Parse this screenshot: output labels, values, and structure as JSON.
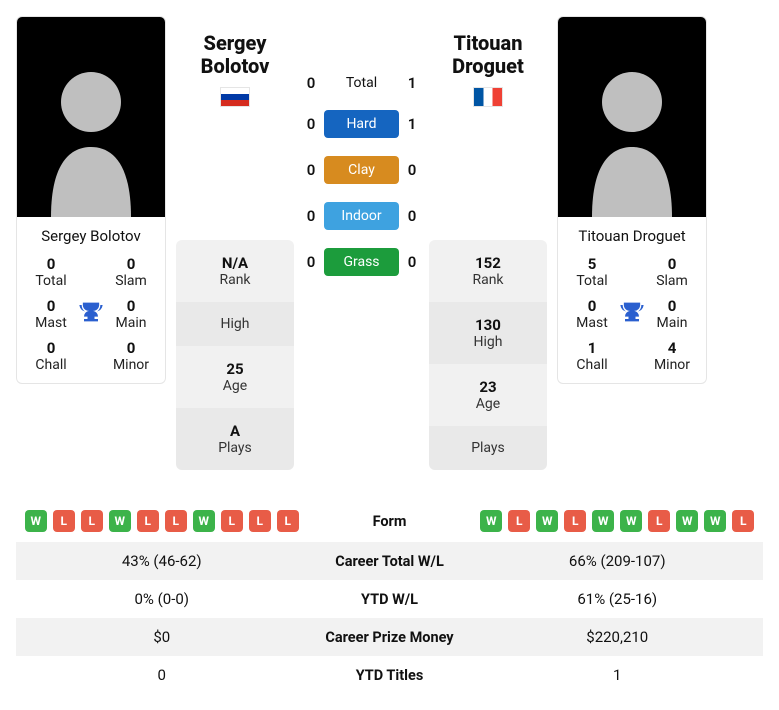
{
  "left": {
    "name": "Sergey Bolotov",
    "first": "Sergey",
    "last": "Bolotov",
    "flag": "ru",
    "stats": {
      "rank": "N/A",
      "high": "",
      "age": "25",
      "plays": "A"
    },
    "titles": {
      "total": "0",
      "slam": "0",
      "mast": "0",
      "main": "0",
      "chall": "0",
      "minor": "0"
    }
  },
  "right": {
    "name": "Titouan Droguet",
    "first": "Titouan",
    "last": "Droguet",
    "flag": "fr",
    "stats": {
      "rank": "152",
      "high": "130",
      "age": "23",
      "plays": ""
    },
    "titles": {
      "total": "5",
      "slam": "0",
      "mast": "0",
      "main": "0",
      "chall": "1",
      "minor": "4"
    }
  },
  "labels": {
    "rank": "Rank",
    "high": "High",
    "age": "Age",
    "plays": "Plays",
    "total": "Total",
    "slam": "Slam",
    "mast": "Mast",
    "main": "Main",
    "chall": "Chall",
    "minor": "Minor"
  },
  "h2h": {
    "rows": [
      {
        "label": "Total",
        "pill": "",
        "left": "0",
        "right": "1"
      },
      {
        "label": "Hard",
        "pill": "hard",
        "left": "0",
        "right": "1"
      },
      {
        "label": "Clay",
        "pill": "clay",
        "left": "0",
        "right": "0"
      },
      {
        "label": "Indoor",
        "pill": "indoor",
        "left": "0",
        "right": "0"
      },
      {
        "label": "Grass",
        "pill": "grass",
        "left": "0",
        "right": "0"
      }
    ]
  },
  "compare": {
    "labels": {
      "form": "Form",
      "career_wl": "Career Total W/L",
      "ytd_wl": "YTD W/L",
      "prize": "Career Prize Money",
      "ytd_titles": "YTD Titles"
    },
    "left": {
      "form": [
        "W",
        "L",
        "L",
        "W",
        "L",
        "L",
        "W",
        "L",
        "L",
        "L"
      ],
      "career_wl": "43% (46-62)",
      "ytd_wl": "0% (0-0)",
      "prize": "$0",
      "ytd_titles": "0"
    },
    "right": {
      "form": [
        "W",
        "L",
        "W",
        "L",
        "W",
        "W",
        "L",
        "W",
        "W",
        "L"
      ],
      "career_wl": "66% (209-107)",
      "ytd_wl": "61% (25-16)",
      "prize": "$220,210",
      "ytd_titles": "1"
    }
  },
  "colors": {
    "win": "#3cb34a",
    "loss": "#e85c47",
    "hard": "#1565c0",
    "clay": "#d78b1f",
    "indoor": "#3ea2e0",
    "grass": "#1c9c3c"
  }
}
